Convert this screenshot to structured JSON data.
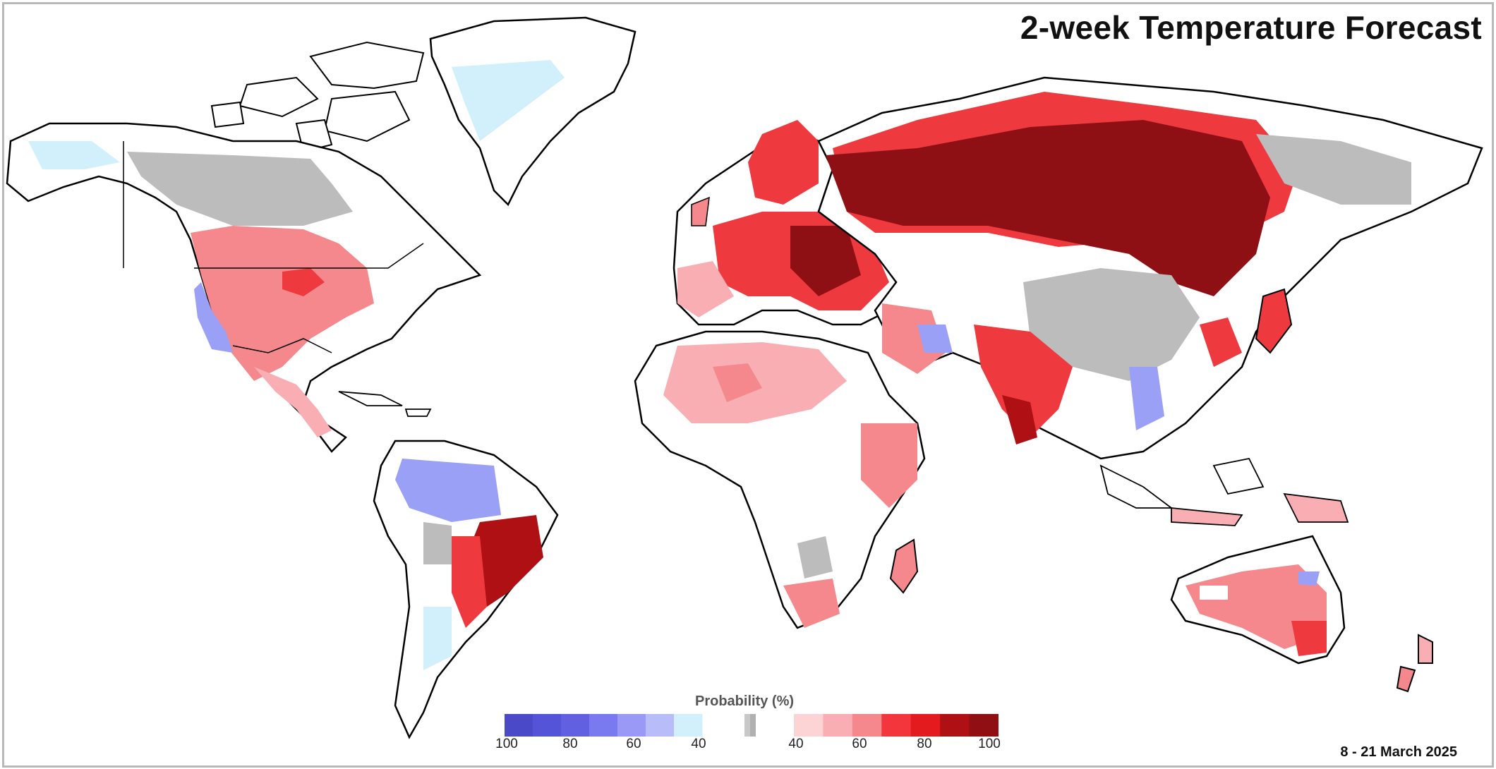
{
  "map": {
    "title": "2-week Temperature Forecast",
    "date_range": "8 - 21 March 2025",
    "legend": {
      "title": "Probability (%)",
      "below_ticks": [
        "100",
        "80",
        "60",
        "40"
      ],
      "above_ticks": [
        "40",
        "60",
        "80",
        "100"
      ],
      "below_colors": [
        "#4a4ac8",
        "#5454d8",
        "#6060e0",
        "#7a7af0",
        "#9a9af6",
        "#b8bdfa",
        "#d2f0fb"
      ],
      "normal_colors": [
        "#c8c8c8",
        "#b0b0b0"
      ],
      "above_colors": [
        "#fcd4d6",
        "#f8aeb2",
        "#f5888c",
        "#f2363b",
        "#e31b1f",
        "#ae1014",
        "#8f0f12"
      ]
    },
    "category_colors": {
      "below": "#9aa0f5",
      "near_normal": "#bcbcbc",
      "above": "#ee3a3e",
      "strongly_above": "#8f1014"
    }
  }
}
